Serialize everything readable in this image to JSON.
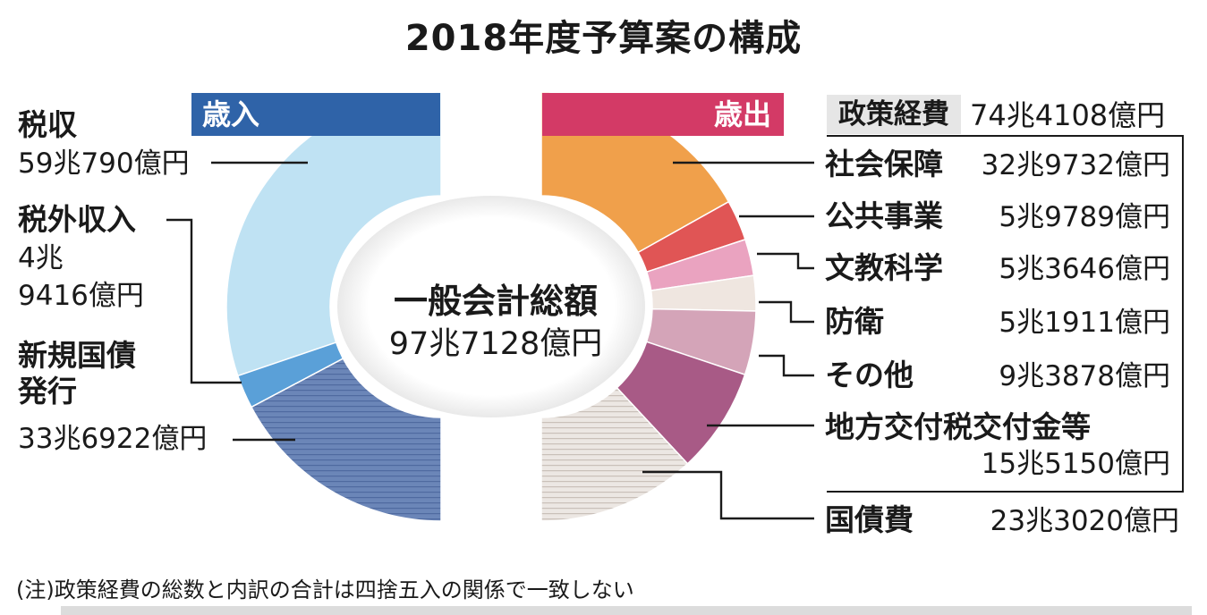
{
  "chart_data": {
    "type": "pie",
    "title": "2018年度予算案の構成",
    "center_label": "一般会計総額",
    "center_value": "97兆7128億円",
    "total_oku": 977128,
    "revenue": {
      "label": "歳入",
      "color": "#2f63a8",
      "items": [
        {
          "name": "税収",
          "amount": "59兆790億円",
          "value": 590790,
          "color": "#bfe2f3"
        },
        {
          "name": "税外収入",
          "amount_line1": "4兆",
          "amount_line2": "9416億円",
          "value": 49416,
          "color": "#5aa0d8"
        },
        {
          "name_line1": "新規国債",
          "name_line2": "発行",
          "amount": "33兆6922億円",
          "value": 336922,
          "color": "#6b86b8"
        }
      ]
    },
    "expenditure": {
      "label": "歳出",
      "color": "#d33a66",
      "policy_label": "政策経費",
      "policy_amount": "74兆4108億円",
      "items": [
        {
          "name": "社会保障",
          "amount": "32兆9732億円",
          "value": 329732,
          "color": "#f0a04b"
        },
        {
          "name": "公共事業",
          "amount": "5兆9789億円",
          "value": 59789,
          "color": "#e05555"
        },
        {
          "name": "文教科学",
          "amount": "5兆3646億円",
          "value": 53646,
          "color": "#eaa3c0"
        },
        {
          "name": "防衛",
          "amount": "5兆1911億円",
          "value": 51911,
          "color": "#efe6e0"
        },
        {
          "name": "その他",
          "amount": "9兆3878億円",
          "value": 93878,
          "color": "#d4a4b8"
        },
        {
          "name": "地方交付税交付金等",
          "amount": "15兆5150億円",
          "value": 155150,
          "color": "#a85a86"
        },
        {
          "name": "国債費",
          "amount": "23兆3020億円",
          "value": 233020,
          "color": "#e4ddd8"
        }
      ]
    },
    "note": "(注)政策経費の総数と内訳の合計は四捨五入の関係で一致しない"
  }
}
